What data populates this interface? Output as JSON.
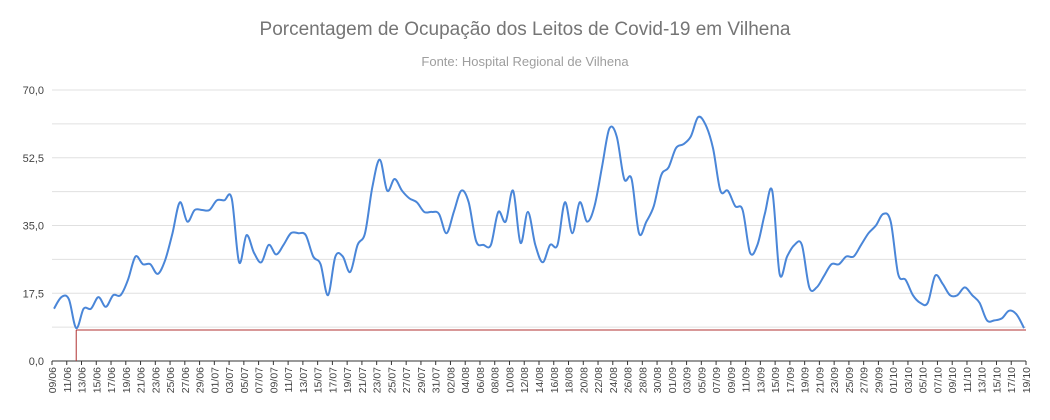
{
  "chart_data": {
    "type": "line",
    "title": "Porcentagem de Ocupação dos Leitos de Covid-19 em Vilhena",
    "subtitle": "Fonte: Hospital Regional de Vilhena",
    "ylim": [
      0,
      70
    ],
    "yticks": [
      "0,0",
      "17,5",
      "35,0",
      "52,5",
      "70,0"
    ],
    "grid": true,
    "legend": "none",
    "colors": {
      "line": "#4a86d8",
      "reference": "#b03030",
      "grid": "#e0e0e0"
    },
    "x_tick_labels": [
      "09/06",
      "11/06",
      "13/06",
      "15/06",
      "17/06",
      "19/06",
      "21/06",
      "23/06",
      "25/06",
      "27/06",
      "29/06",
      "01/07",
      "03/07",
      "05/07",
      "07/07",
      "09/07",
      "11/07",
      "13/07",
      "15/07",
      "17/07",
      "19/07",
      "21/07",
      "23/07",
      "25/07",
      "27/07",
      "29/07",
      "31/07",
      "02/08",
      "04/08",
      "06/08",
      "08/08",
      "10/08",
      "12/08",
      "14/08",
      "16/08",
      "18/08",
      "20/08",
      "22/08",
      "24/08",
      "26/08",
      "28/08",
      "30/08",
      "01/09",
      "03/09",
      "05/09",
      "07/09",
      "09/09",
      "11/09",
      "13/09",
      "15/09",
      "17/09",
      "19/09",
      "21/09",
      "23/09",
      "25/09",
      "27/09",
      "29/09",
      "01/10",
      "03/10",
      "05/10",
      "07/10",
      "09/10",
      "11/10",
      "13/10",
      "15/10",
      "17/10",
      "19/10"
    ],
    "series": [
      {
        "values": [
          13.5,
          16.5,
          16,
          8.5,
          13.5,
          13.5,
          16.5,
          14,
          17,
          17,
          21,
          27,
          25,
          25,
          22.5,
          26,
          33,
          41,
          36,
          39,
          39,
          39,
          41.5,
          41.5,
          42,
          25.5,
          32.5,
          28,
          25.5,
          30,
          27.5,
          30,
          33,
          33,
          32.5,
          27,
          25,
          17,
          27,
          27,
          23,
          30,
          33,
          45,
          52,
          44,
          47,
          44,
          42,
          41,
          38.5,
          38.5,
          38,
          33,
          38.5,
          44,
          41,
          31,
          30,
          30,
          38.5,
          36,
          44,
          30.5,
          38.5,
          30,
          25.5,
          30,
          30,
          41,
          33,
          41,
          36,
          40,
          50,
          60,
          58,
          47,
          47,
          33,
          36,
          40,
          48,
          50,
          55,
          56,
          58,
          63,
          61,
          55,
          44,
          44,
          40,
          39,
          28,
          30,
          38,
          44,
          22.5,
          27,
          30,
          30,
          19,
          19,
          22,
          25,
          25,
          27,
          27,
          30,
          33,
          35,
          38,
          36,
          22.5,
          21,
          17,
          15,
          15,
          22,
          20,
          17,
          17,
          19,
          17,
          15,
          10.5,
          10.5,
          11,
          13,
          12,
          8.5
        ]
      },
      {
        "values": [
          8,
          8
        ]
      }
    ]
  }
}
